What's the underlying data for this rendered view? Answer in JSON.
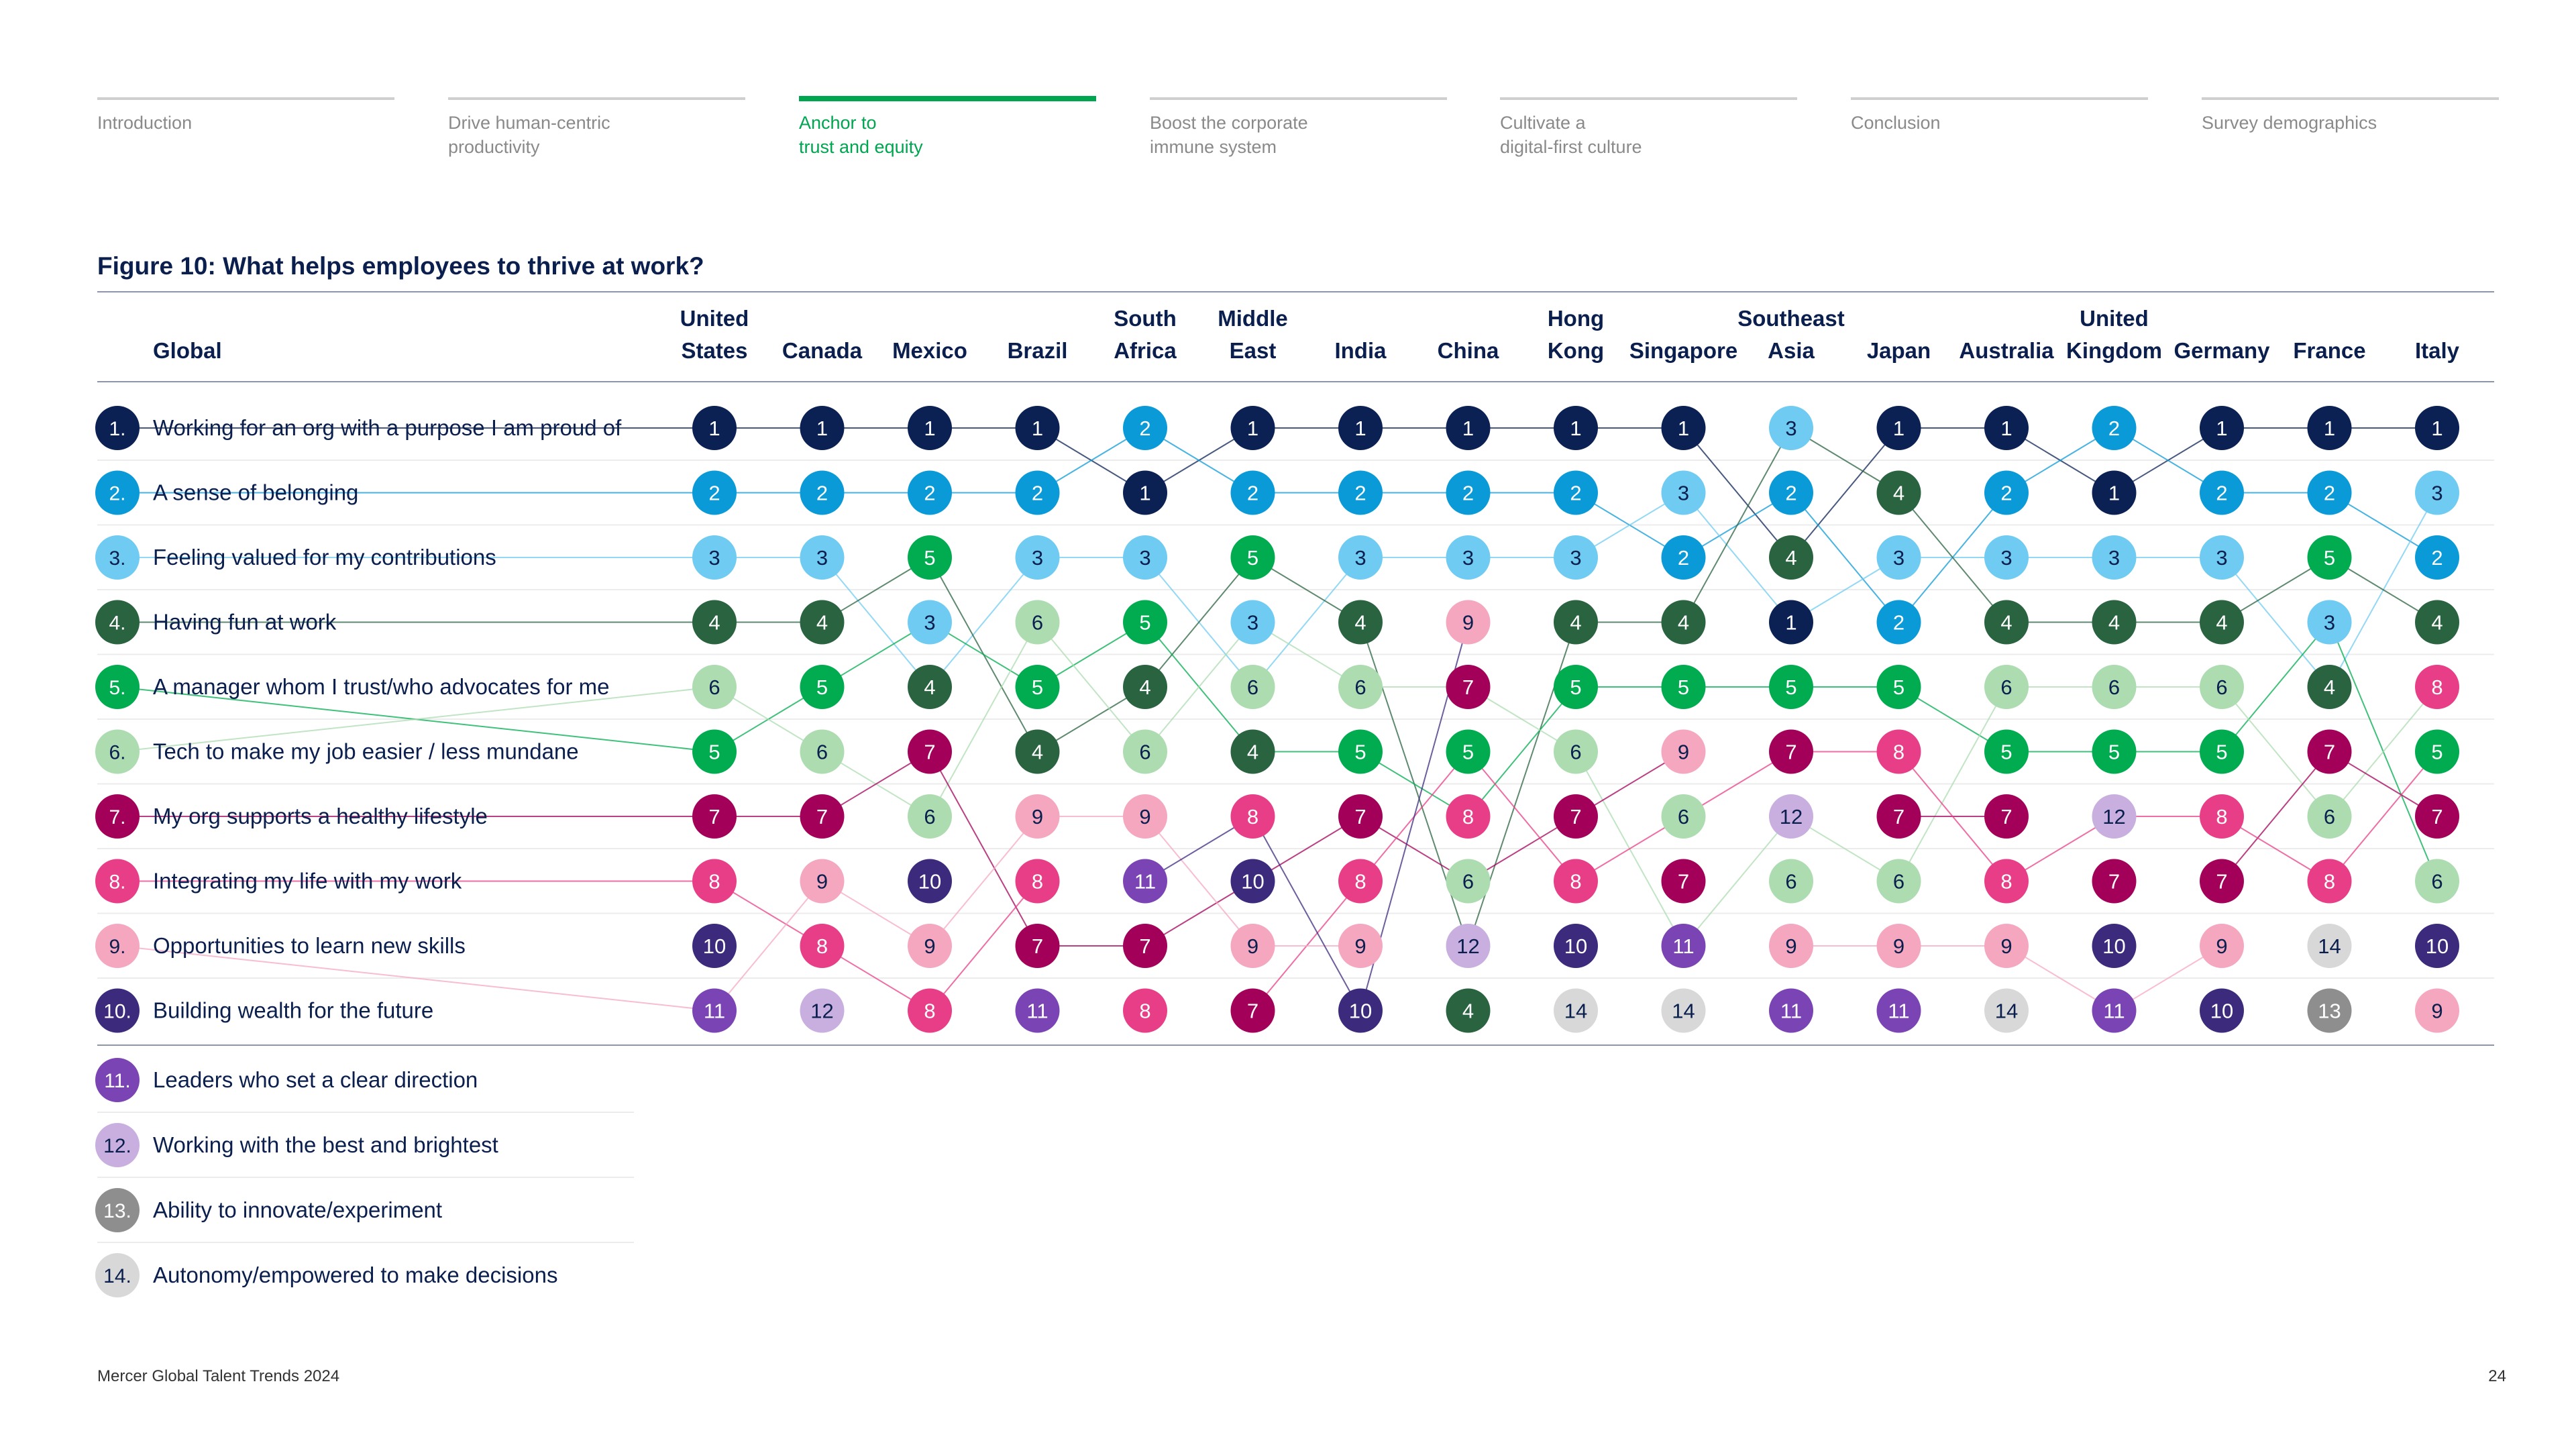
{
  "nav": [
    {
      "label": "Introduction",
      "active": false
    },
    {
      "label": "Drive human-centric\nproductivity",
      "active": false
    },
    {
      "label": "Anchor to\ntrust and equity",
      "active": true
    },
    {
      "label": "Boost the corporate\nimmune system",
      "active": false
    },
    {
      "label": "Cultivate a\ndigital-first culture",
      "active": false
    },
    {
      "label": "Conclusion",
      "active": false
    },
    {
      "label": "Survey demographics",
      "active": false
    }
  ],
  "figure": {
    "title": "Figure 10: What helps employees to thrive at work?",
    "global_header": "Global"
  },
  "chart_data": {
    "type": "table",
    "factors": [
      {
        "rank": 1,
        "rank_label": "1.",
        "label": "Working for an org with a purpose I am proud of"
      },
      {
        "rank": 2,
        "rank_label": "2.",
        "label": "A sense of belonging"
      },
      {
        "rank": 3,
        "rank_label": "3.",
        "label": "Feeling valued for my contributions"
      },
      {
        "rank": 4,
        "rank_label": "4.",
        "label": "Having fun at work"
      },
      {
        "rank": 5,
        "rank_label": "5.",
        "label": "A manager whom I trust/who advocates for me"
      },
      {
        "rank": 6,
        "rank_label": "6.",
        "label": "Tech to make my job easier / less mundane"
      },
      {
        "rank": 7,
        "rank_label": "7.",
        "label": "My org supports a healthy lifestyle"
      },
      {
        "rank": 8,
        "rank_label": "8.",
        "label": "Integrating my life with my work"
      },
      {
        "rank": 9,
        "rank_label": "9.",
        "label": "Opportunities to learn new skills"
      },
      {
        "rank": 10,
        "rank_label": "10.",
        "label": "Building wealth for the future"
      },
      {
        "rank": 11,
        "rank_label": "11.",
        "label": "Leaders who set a clear direction"
      },
      {
        "rank": 12,
        "rank_label": "12.",
        "label": "Working with the best and brightest"
      },
      {
        "rank": 13,
        "rank_label": "13.",
        "label": "Ability to innovate/experiment"
      },
      {
        "rank": 14,
        "rank_label": "14.",
        "label": "Autonomy/empowered to make decisions"
      }
    ],
    "countries": [
      {
        "name_lines": [
          "United",
          "States"
        ],
        "ranks": [
          1,
          2,
          3,
          4,
          6,
          5,
          7,
          8,
          10,
          11
        ]
      },
      {
        "name_lines": [
          "Canada"
        ],
        "ranks": [
          1,
          2,
          3,
          4,
          5,
          6,
          7,
          9,
          8,
          12
        ]
      },
      {
        "name_lines": [
          "Mexico"
        ],
        "ranks": [
          1,
          2,
          5,
          3,
          4,
          7,
          6,
          10,
          9,
          8
        ]
      },
      {
        "name_lines": [
          "Brazil"
        ],
        "ranks": [
          1,
          2,
          3,
          6,
          5,
          4,
          9,
          8,
          7,
          11
        ]
      },
      {
        "name_lines": [
          "South",
          "Africa"
        ],
        "ranks": [
          2,
          1,
          3,
          5,
          4,
          6,
          9,
          11,
          7,
          8
        ]
      },
      {
        "name_lines": [
          "Middle",
          "East"
        ],
        "ranks": [
          1,
          2,
          5,
          3,
          6,
          4,
          8,
          10,
          9,
          7
        ]
      },
      {
        "name_lines": [
          "India"
        ],
        "ranks": [
          1,
          2,
          3,
          4,
          6,
          5,
          7,
          8,
          9,
          10
        ]
      },
      {
        "name_lines": [
          "China"
        ],
        "ranks": [
          1,
          2,
          3,
          9,
          7,
          5,
          8,
          6,
          12,
          4
        ]
      },
      {
        "name_lines": [
          "Hong",
          "Kong"
        ],
        "ranks": [
          1,
          2,
          3,
          4,
          5,
          6,
          7,
          8,
          10,
          14
        ]
      },
      {
        "name_lines": [
          "Singapore"
        ],
        "ranks": [
          1,
          3,
          2,
          4,
          5,
          9,
          6,
          7,
          11,
          14
        ]
      },
      {
        "name_lines": [
          "Southeast",
          "Asia"
        ],
        "ranks": [
          3,
          2,
          4,
          1,
          5,
          7,
          12,
          6,
          9,
          11
        ]
      },
      {
        "name_lines": [
          "Japan"
        ],
        "ranks": [
          1,
          4,
          3,
          2,
          5,
          8,
          7,
          6,
          9,
          11
        ]
      },
      {
        "name_lines": [
          "Australia"
        ],
        "ranks": [
          1,
          2,
          3,
          4,
          6,
          5,
          7,
          8,
          9,
          14
        ]
      },
      {
        "name_lines": [
          "United",
          "Kingdom"
        ],
        "ranks": [
          2,
          1,
          3,
          4,
          6,
          5,
          12,
          7,
          10,
          11
        ]
      },
      {
        "name_lines": [
          "Germany"
        ],
        "ranks": [
          1,
          2,
          3,
          4,
          6,
          5,
          8,
          7,
          9,
          10
        ]
      },
      {
        "name_lines": [
          "France"
        ],
        "ranks": [
          1,
          2,
          5,
          3,
          4,
          7,
          6,
          8,
          14,
          13
        ]
      },
      {
        "name_lines": [
          "Italy"
        ],
        "ranks": [
          1,
          3,
          2,
          4,
          8,
          5,
          7,
          6,
          10,
          9
        ]
      }
    ],
    "rank_colors": {
      "1": "#0b2154",
      "2": "#0a9ad8",
      "3": "#6fcbf2",
      "4": "#2a6340",
      "5": "#00ac4f",
      "6": "#acdcb0",
      "7": "#a3005a",
      "8": "#e83e87",
      "9": "#f5a7c0",
      "10": "#3c2a7d",
      "11": "#7b44b5",
      "12": "#c9afe0",
      "13": "#8e8e8e",
      "14": "#d8d8d8"
    }
  },
  "footer": {
    "source": "Mercer Global Talent Trends 2024",
    "page": "24"
  }
}
